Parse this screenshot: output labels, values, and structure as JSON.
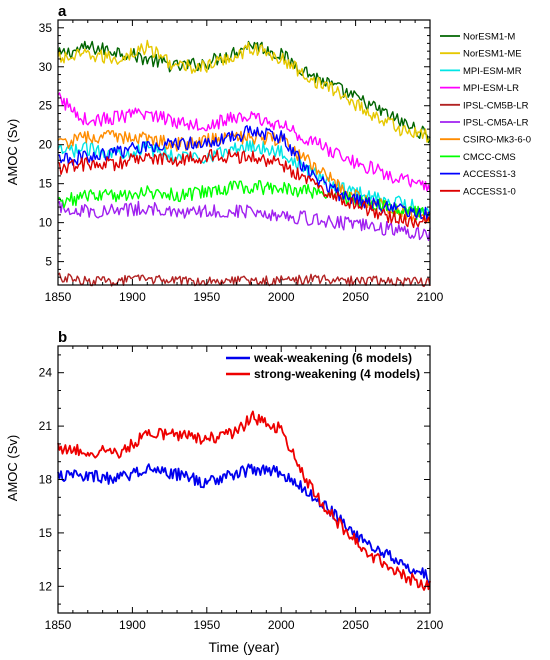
{
  "chart_data": [
    {
      "panel": "a",
      "type": "line",
      "ylabel": "AMOC (Sv)",
      "xlabel": "",
      "xlim": [
        1850,
        2100
      ],
      "ylim": [
        2,
        36
      ],
      "xticks": [
        "1850",
        "1900",
        "1950",
        "2000",
        "2050",
        "2100"
      ],
      "yticks": [
        "5",
        "10",
        "15",
        "20",
        "25",
        "30",
        "35"
      ],
      "legend_position": "outside-right",
      "series": [
        {
          "name": "NorESM1-M",
          "color": "#006400",
          "x": [
            1850,
            1870,
            1890,
            1910,
            1930,
            1950,
            1970,
            1980,
            2000,
            2020,
            2040,
            2060,
            2080,
            2100
          ],
          "values": [
            31.5,
            32.5,
            32.0,
            31.0,
            30.0,
            30.5,
            32.0,
            33.0,
            31.5,
            29.0,
            27.0,
            25.0,
            23.0,
            21.0
          ]
        },
        {
          "name": "NorESM1-ME",
          "color": "#e6c800",
          "x": [
            1850,
            1870,
            1890,
            1910,
            1930,
            1950,
            1970,
            1980,
            2000,
            2020,
            2040,
            2060,
            2080,
            2100
          ],
          "values": [
            31.0,
            31.5,
            31.0,
            32.5,
            30.0,
            30.0,
            31.5,
            32.5,
            31.0,
            28.5,
            26.5,
            24.0,
            22.0,
            21.0
          ]
        },
        {
          "name": "MPI-ESM-MR",
          "color": "#00e5e5",
          "x": [
            1850,
            1870,
            1890,
            1910,
            1930,
            1950,
            1970,
            1980,
            2000,
            2020,
            2040,
            2060,
            2080,
            2100
          ],
          "values": [
            19.0,
            19.5,
            19.0,
            19.5,
            18.5,
            18.5,
            19.5,
            20.0,
            19.0,
            16.5,
            14.5,
            13.5,
            12.5,
            11.5
          ]
        },
        {
          "name": "MPI-ESM-LR",
          "color": "#ff00ff",
          "x": [
            1850,
            1870,
            1890,
            1910,
            1930,
            1950,
            1970,
            1980,
            2000,
            2020,
            2040,
            2060,
            2080,
            2100
          ],
          "values": [
            26.0,
            23.0,
            23.5,
            24.0,
            23.0,
            22.5,
            23.5,
            23.5,
            22.5,
            20.5,
            18.5,
            17.0,
            15.5,
            14.5
          ]
        },
        {
          "name": "IPSL-CM5B-LR",
          "color": "#b22222",
          "x": [
            1850,
            1870,
            1890,
            1910,
            1930,
            1950,
            1970,
            1980,
            2000,
            2020,
            2040,
            2060,
            2080,
            2100
          ],
          "values": [
            3.0,
            2.5,
            2.5,
            2.8,
            2.5,
            2.6,
            2.7,
            2.5,
            2.6,
            2.8,
            2.5,
            2.6,
            2.5,
            2.4
          ]
        },
        {
          "name": "IPSL-CM5A-LR",
          "color": "#a020f0",
          "x": [
            1850,
            1870,
            1890,
            1910,
            1930,
            1950,
            1970,
            1980,
            2000,
            2020,
            2040,
            2060,
            2080,
            2100
          ],
          "values": [
            12.0,
            11.5,
            11.5,
            12.0,
            11.0,
            11.5,
            11.5,
            11.5,
            11.0,
            10.5,
            10.0,
            9.5,
            9.0,
            8.5
          ]
        },
        {
          "name": "CSIRO-Mk3-6-0",
          "color": "#ff8c00",
          "x": [
            1850,
            1870,
            1890,
            1910,
            1930,
            1950,
            1970,
            1980,
            2000,
            2020,
            2040,
            2060,
            2080,
            2100
          ],
          "values": [
            20.0,
            21.0,
            21.0,
            21.0,
            20.0,
            20.5,
            21.0,
            21.0,
            20.5,
            17.5,
            14.5,
            12.5,
            11.5,
            10.5
          ]
        },
        {
          "name": "CMCC-CMS",
          "color": "#00ff00",
          "x": [
            1850,
            1870,
            1890,
            1910,
            1930,
            1950,
            1970,
            1980,
            2000,
            2020,
            2040,
            2060,
            2080,
            2100
          ],
          "values": [
            12.5,
            13.5,
            13.5,
            14.0,
            13.5,
            14.0,
            14.5,
            14.5,
            14.5,
            14.0,
            13.5,
            12.5,
            11.5,
            11.0
          ]
        },
        {
          "name": "ACCESS1-3",
          "color": "#0000ff",
          "x": [
            1850,
            1870,
            1890,
            1910,
            1930,
            1950,
            1970,
            1980,
            2000,
            2020,
            2040,
            2060,
            2080,
            2100
          ],
          "values": [
            18.0,
            18.5,
            19.0,
            20.0,
            20.0,
            20.5,
            21.0,
            22.0,
            21.0,
            16.0,
            13.5,
            12.5,
            11.5,
            11.0
          ]
        },
        {
          "name": "ACCESS1-0",
          "color": "#dd0000",
          "x": [
            1850,
            1870,
            1890,
            1910,
            1930,
            1950,
            1970,
            1980,
            2000,
            2020,
            2040,
            2060,
            2080,
            2100
          ],
          "values": [
            17.0,
            17.5,
            17.5,
            18.5,
            18.0,
            18.5,
            18.5,
            18.5,
            17.5,
            15.0,
            13.0,
            11.5,
            10.5,
            10.0
          ]
        }
      ]
    },
    {
      "panel": "b",
      "type": "line",
      "ylabel": "AMOC (Sv)",
      "xlabel": "Time (year)",
      "xlim": [
        1850,
        2100
      ],
      "ylim": [
        10.5,
        25.5
      ],
      "xticks": [
        "1850",
        "1900",
        "1950",
        "2000",
        "2050",
        "2100"
      ],
      "yticks": [
        "12",
        "15",
        "18",
        "21",
        "24"
      ],
      "legend_position": "top-right",
      "series": [
        {
          "name": "weak-weakening (6 models)",
          "color": "#0000ee",
          "x": [
            1850,
            1870,
            1890,
            1910,
            1930,
            1950,
            1970,
            1980,
            1990,
            2000,
            2010,
            2020,
            2030,
            2040,
            2050,
            2060,
            2070,
            2080,
            2090,
            2100
          ],
          "values": [
            18.2,
            18.2,
            18.0,
            18.6,
            18.3,
            17.8,
            18.3,
            18.6,
            18.5,
            18.4,
            17.8,
            17.2,
            16.5,
            15.8,
            15.0,
            14.3,
            13.8,
            13.3,
            12.9,
            12.5
          ]
        },
        {
          "name": "strong-weakening (4 models)",
          "color": "#ee0000",
          "x": [
            1850,
            1870,
            1890,
            1910,
            1930,
            1950,
            1970,
            1980,
            1990,
            2000,
            2010,
            2020,
            2030,
            2040,
            2050,
            2060,
            2070,
            2080,
            2090,
            2100
          ],
          "values": [
            19.8,
            19.6,
            19.5,
            20.5,
            20.5,
            20.3,
            20.6,
            21.5,
            21.3,
            20.8,
            19.0,
            17.5,
            16.3,
            15.4,
            14.6,
            13.8,
            13.2,
            12.7,
            12.3,
            12.0
          ]
        }
      ]
    }
  ]
}
